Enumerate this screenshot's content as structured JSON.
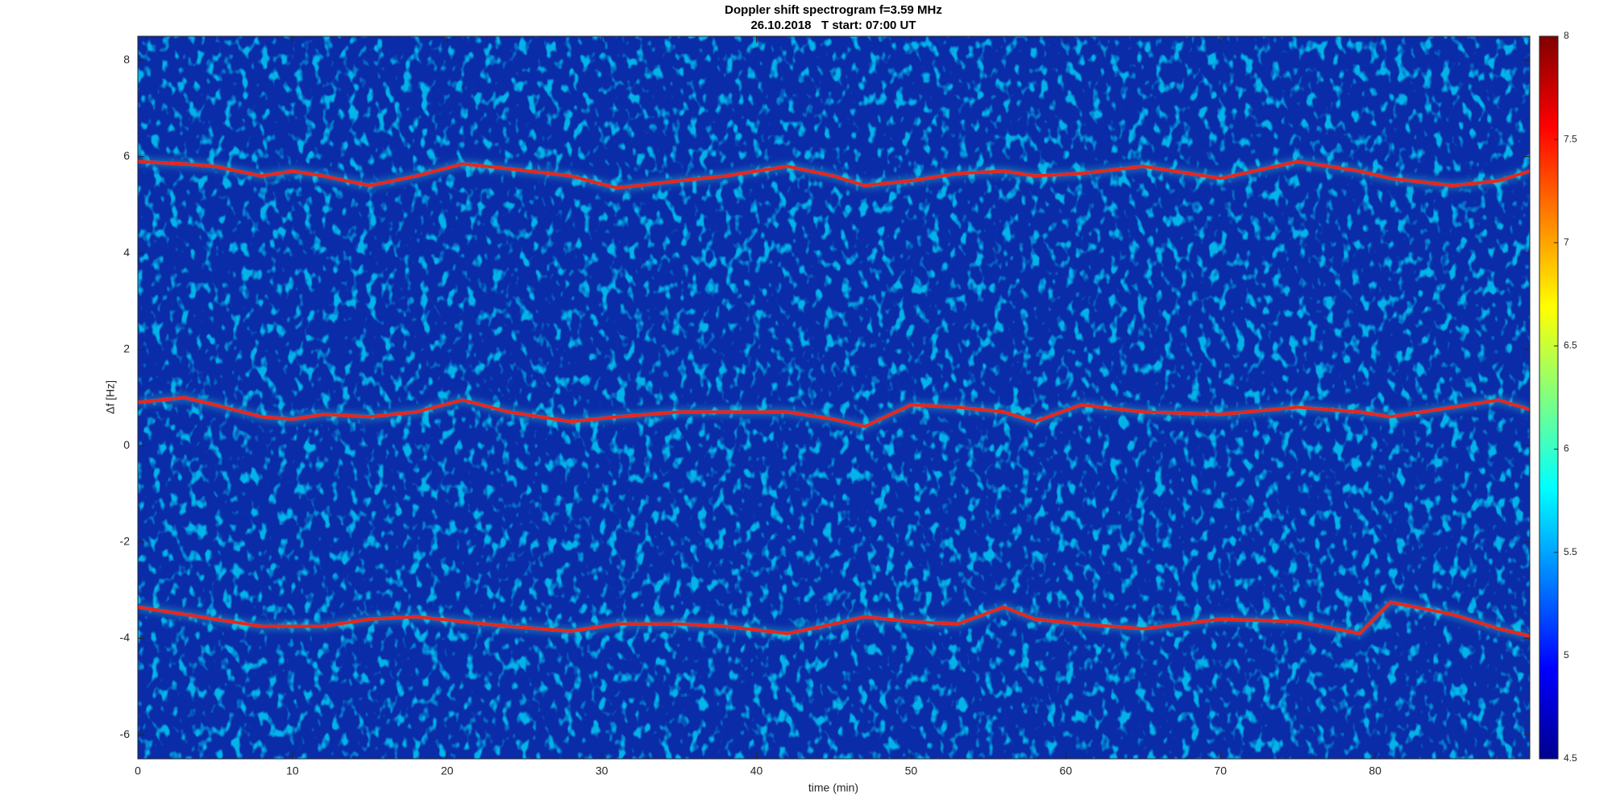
{
  "chart_data": {
    "type": "spectrogram",
    "title": "Doppler shift spectrogram f=3.59 MHz",
    "subtitle": "26.10.2018   T start: 07:00 UT",
    "x_label": "time (min)",
    "y_label": "Δf [Hz]",
    "xlim": [
      0,
      90
    ],
    "xticks": [
      0,
      10,
      20,
      30,
      40,
      50,
      60,
      70,
      80
    ],
    "ylim": [
      -6.5,
      8.5
    ],
    "yticks": [
      -6,
      -4,
      -2,
      0,
      2,
      4,
      6,
      8
    ],
    "colormap": "jet",
    "clim": [
      4.5,
      8
    ],
    "cticks": [
      4.5,
      5,
      5.5,
      6,
      6.5,
      7,
      7.5,
      8
    ],
    "x": [
      0,
      3,
      5,
      8,
      10,
      12,
      15,
      18,
      21,
      24,
      28,
      31,
      35,
      38,
      42,
      45,
      47,
      50,
      53,
      56,
      58,
      61,
      65,
      70,
      75,
      79,
      81,
      85,
      88,
      90
    ],
    "series": [
      {
        "color": "#e8281c",
        "values": [
          5.9,
          5.85,
          5.8,
          5.6,
          5.7,
          5.6,
          5.4,
          5.6,
          5.85,
          5.75,
          5.6,
          5.35,
          5.5,
          5.6,
          5.8,
          5.6,
          5.4,
          5.5,
          5.65,
          5.7,
          5.6,
          5.65,
          5.8,
          5.55,
          5.9,
          5.7,
          5.55,
          5.4,
          5.5,
          5.7
        ]
      },
      {
        "color": "#e8281c",
        "values": [
          0.9,
          1.0,
          0.85,
          0.6,
          0.55,
          0.65,
          0.6,
          0.7,
          0.95,
          0.7,
          0.5,
          0.6,
          0.7,
          0.7,
          0.7,
          0.55,
          0.4,
          0.85,
          0.8,
          0.7,
          0.5,
          0.85,
          0.7,
          0.65,
          0.8,
          0.7,
          0.6,
          0.8,
          0.95,
          0.75
        ]
      },
      {
        "color": "#e8281c",
        "values": [
          -3.35,
          -3.5,
          -3.6,
          -3.75,
          -3.75,
          -3.75,
          -3.6,
          -3.55,
          -3.65,
          -3.75,
          -3.85,
          -3.7,
          -3.7,
          -3.75,
          -3.9,
          -3.7,
          -3.55,
          -3.65,
          -3.7,
          -3.35,
          -3.6,
          -3.7,
          -3.8,
          -3.6,
          -3.65,
          -3.9,
          -3.25,
          -3.5,
          -3.8,
          -3.95
        ]
      }
    ]
  }
}
